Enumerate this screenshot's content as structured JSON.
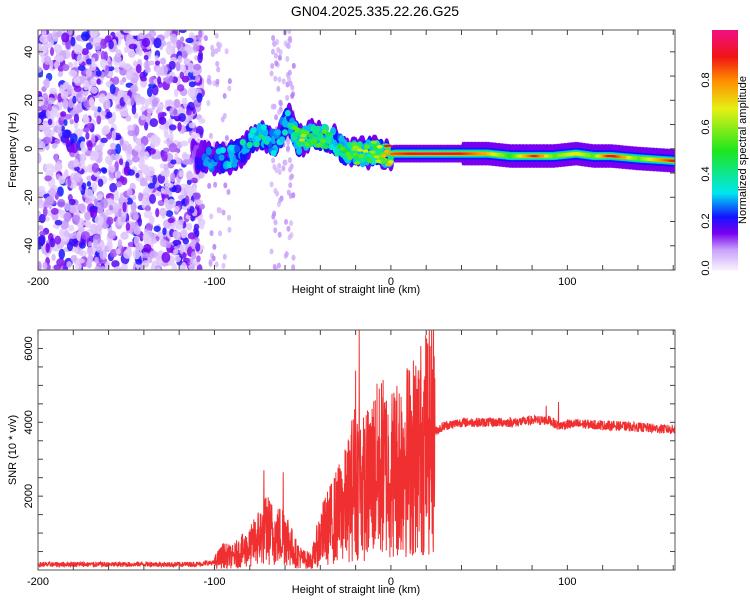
{
  "title": "GN04.2025.335.22.26.G25",
  "chart_data": [
    {
      "type": "heatmap",
      "name": "spectrogram",
      "xlabel": "Height of straight line (km)",
      "ylabel": "Frequency (Hz)",
      "xlim": [
        -200,
        161
      ],
      "ylim": [
        -50,
        49
      ],
      "xticks": [
        -200,
        -100,
        0,
        100
      ],
      "yticks": [
        -40,
        -20,
        0,
        20,
        40
      ],
      "colorbar": {
        "label": "Normalized spectral amplitude",
        "range": [
          0,
          1
        ],
        "ticks": [
          "0.0",
          "0.2",
          "0.4",
          "0.6",
          "0.8"
        ]
      },
      "noise_region_km": [
        -200,
        -110
      ],
      "ridge": [
        {
          "x": -112,
          "f": -3,
          "a": 0.12
        },
        {
          "x": -105,
          "f": -4,
          "a": 0.22
        },
        {
          "x": -95,
          "f": -4,
          "a": 0.28
        },
        {
          "x": -88,
          "f": -3,
          "a": 0.3
        },
        {
          "x": -80,
          "f": 3,
          "a": 0.33
        },
        {
          "x": -74,
          "f": 6,
          "a": 0.38
        },
        {
          "x": -66,
          "f": 2,
          "a": 0.25
        },
        {
          "x": -58,
          "f": 12,
          "a": 0.3
        },
        {
          "x": -52,
          "f": 3,
          "a": 0.6
        },
        {
          "x": -45,
          "f": 6,
          "a": 0.42
        },
        {
          "x": -38,
          "f": 5,
          "a": 0.5
        },
        {
          "x": -32,
          "f": 3,
          "a": 0.3
        },
        {
          "x": -25,
          "f": -2,
          "a": 0.5
        },
        {
          "x": -15,
          "f": -2,
          "a": 0.55
        },
        {
          "x": -8,
          "f": -1,
          "a": 0.5
        },
        {
          "x": -4,
          "f": -3,
          "a": 0.8
        },
        {
          "x": 2,
          "f": -2,
          "a": 0.85
        },
        {
          "x": 20,
          "f": -2,
          "a": 0.95
        },
        {
          "x": 40,
          "f": -2,
          "a": 0.9
        },
        {
          "x": 55,
          "f": -2,
          "a": 0.75
        },
        {
          "x": 68,
          "f": -3,
          "a": 0.5
        },
        {
          "x": 82,
          "f": -3,
          "a": 0.92
        },
        {
          "x": 92,
          "f": -3,
          "a": 0.55
        },
        {
          "x": 105,
          "f": -2,
          "a": 0.7
        },
        {
          "x": 115,
          "f": -3,
          "a": 0.55
        },
        {
          "x": 125,
          "f": -3,
          "a": 0.97
        },
        {
          "x": 140,
          "f": -4,
          "a": 0.55
        },
        {
          "x": 161,
          "f": -5,
          "a": 0.92
        }
      ]
    },
    {
      "type": "line",
      "name": "snr",
      "xlabel": "Height of straight line (km)",
      "ylabel": "SNR (10 * v/v)",
      "xlim": [
        -200,
        161
      ],
      "ylim": [
        0,
        6500
      ],
      "xticks": [
        -200,
        -100,
        0,
        100
      ],
      "yticks": [
        2000,
        4000,
        6000
      ],
      "series": [
        {
          "name": "SNR",
          "color": "#f03030",
          "x": [
            -200,
            -190,
            -180,
            -170,
            -160,
            -150,
            -140,
            -130,
            -120,
            -110,
            -100,
            -95,
            -90,
            -85,
            -80,
            -75,
            -70,
            -65,
            -60,
            -55,
            -50,
            -45,
            -40,
            -35,
            -30,
            -25,
            -20,
            -15,
            -10,
            -5,
            0,
            5,
            10,
            15,
            20,
            25,
            30,
            35,
            40,
            50,
            60,
            70,
            80,
            90,
            95,
            100,
            110,
            120,
            130,
            140,
            150,
            161
          ],
          "y": [
            150,
            150,
            160,
            150,
            150,
            150,
            160,
            150,
            150,
            160,
            200,
            400,
            350,
            500,
            600,
            900,
            1100,
            900,
            1000,
            500,
            300,
            250,
            900,
            1200,
            1500,
            1800,
            2500,
            2200,
            2600,
            2800,
            2600,
            2900,
            3000,
            3200,
            3500,
            3750,
            3900,
            3950,
            4000,
            4000,
            4000,
            4000,
            4050,
            4050,
            3900,
            3950,
            3950,
            3920,
            3900,
            3870,
            3830,
            3800
          ]
        }
      ],
      "peaks": [
        {
          "x": -72,
          "y": 2700
        },
        {
          "x": -61,
          "y": 2650
        },
        {
          "x": -20,
          "y": 5400
        },
        {
          "x": -18,
          "y": 6500
        },
        {
          "x": -15,
          "y": 3800
        },
        {
          "x": 8,
          "y": 4000
        },
        {
          "x": 13,
          "y": 3900
        },
        {
          "x": 95,
          "y": 4550
        },
        {
          "x": 88,
          "y": 4450
        }
      ]
    }
  ]
}
